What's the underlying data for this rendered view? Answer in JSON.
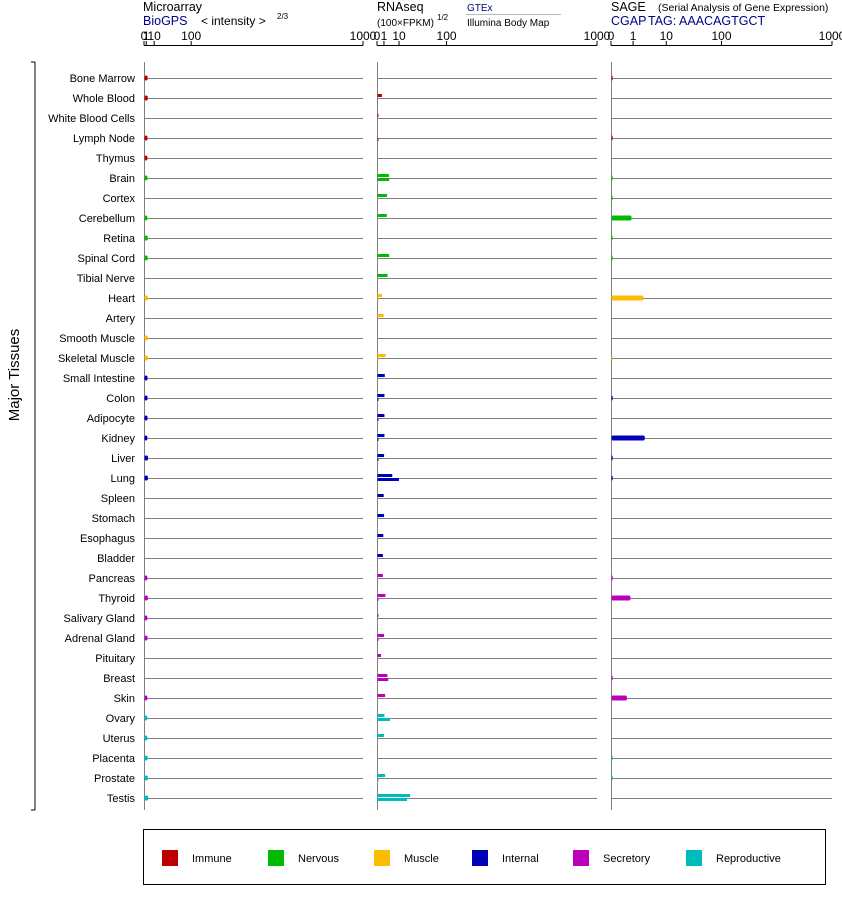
{
  "colors": {
    "Immune": "#bb0000",
    "Nervous": "#00bb00",
    "Muscle": "#ffbb00",
    "Internal": "#0000bb",
    "Secretory": "#bb00bb",
    "Reproductive": "#00bbbb",
    "header_blue": "#000088",
    "axis": "#000000",
    "gridline": "#808080"
  },
  "y_axis_label": "Major Tissues",
  "legend": [
    "Immune",
    "Nervous",
    "Muscle",
    "Internal",
    "Secretory",
    "Reproductive"
  ],
  "headers": {
    "microarray": {
      "title": "Microarray",
      "source": "BioGPS",
      "metric": "< intensity >",
      "exponent": "2/3"
    },
    "rnaseq": {
      "title": "RNAseq",
      "metric": "(100×FPKM)",
      "exponent": "1/2",
      "source1": "GTEx",
      "source2": "Illumina Body Map"
    },
    "sage": {
      "title": "SAGE",
      "subtitle": "(Serial Analysis of Gene Expression)",
      "source": "CGAP",
      "tag": "TAG: AAACAGTGCT"
    }
  },
  "chart_data": [
    {
      "type": "bar",
      "orientation": "horizontal",
      "title": "Microarray",
      "xscale": "power 2/3",
      "xticks": [
        "0",
        "1",
        "10",
        "100",
        "1000"
      ],
      "xlim": [
        0,
        1000
      ],
      "categories": [
        "Bone Marrow",
        "Whole Blood",
        "White Blood Cells",
        "Lymph Node",
        "Thymus",
        "Brain",
        "Cortex",
        "Cerebellum",
        "Retina",
        "Spinal Cord",
        "Tibial Nerve",
        "Heart",
        "Artery",
        "Smooth Muscle",
        "Skeletal Muscle",
        "Small Intestine",
        "Colon",
        "Adipocyte",
        "Kidney",
        "Liver",
        "Lung",
        "Spleen",
        "Stomach",
        "Esophagus",
        "Bladder",
        "Pancreas",
        "Thyroid",
        "Salivary Gland",
        "Adrenal Gland",
        "Pituitary",
        "Breast",
        "Skin",
        "Ovary",
        "Uterus",
        "Placenta",
        "Prostate",
        "Testis"
      ],
      "groups": [
        "Immune",
        "Immune",
        "Immune",
        "Immune",
        "Immune",
        "Nervous",
        "Nervous",
        "Nervous",
        "Nervous",
        "Nervous",
        "Nervous",
        "Muscle",
        "Muscle",
        "Muscle",
        "Muscle",
        "Internal",
        "Internal",
        "Internal",
        "Internal",
        "Internal",
        "Internal",
        "Internal",
        "Internal",
        "Internal",
        "Internal",
        "Secretory",
        "Secretory",
        "Secretory",
        "Secretory",
        "Secretory",
        "Secretory",
        "Secretory",
        "Reproductive",
        "Reproductive",
        "Reproductive",
        "Reproductive",
        "Reproductive"
      ],
      "series": [
        {
          "values": [
            1.7,
            1.8,
            null,
            1.6,
            1.5,
            1.6,
            null,
            1.5,
            1.8,
            1.7,
            null,
            1.9,
            null,
            1.8,
            1.9,
            1.6,
            1.6,
            1.6,
            1.5,
            2.0,
            1.9,
            null,
            null,
            null,
            null,
            1.5,
            1.9,
            1.5,
            1.6,
            null,
            null,
            1.5,
            1.4,
            1.5,
            1.7,
            1.8,
            2.2
          ]
        }
      ]
    },
    {
      "type": "bar",
      "orientation": "horizontal",
      "title": "RNAseq",
      "xscale": "power 1/2",
      "xticks": [
        "0",
        "1",
        "10",
        "100",
        "1000"
      ],
      "xlim": [
        0,
        1000
      ],
      "categories": [
        "Bone Marrow",
        "Whole Blood",
        "White Blood Cells",
        "Lymph Node",
        "Thymus",
        "Brain",
        "Cortex",
        "Cerebellum",
        "Retina",
        "Spinal Cord",
        "Tibial Nerve",
        "Heart",
        "Artery",
        "Smooth Muscle",
        "Skeletal Muscle",
        "Small Intestine",
        "Colon",
        "Adipocyte",
        "Kidney",
        "Liver",
        "Lung",
        "Spleen",
        "Stomach",
        "Esophagus",
        "Bladder",
        "Pancreas",
        "Thyroid",
        "Salivary Gland",
        "Adrenal Gland",
        "Pituitary",
        "Breast",
        "Skin",
        "Ovary",
        "Uterus",
        "Placenta",
        "Prostate",
        "Testis"
      ],
      "groups": [
        "Immune",
        "Immune",
        "Immune",
        "Immune",
        "Immune",
        "Nervous",
        "Nervous",
        "Nervous",
        "Nervous",
        "Nervous",
        "Nervous",
        "Muscle",
        "Muscle",
        "Muscle",
        "Muscle",
        "Internal",
        "Internal",
        "Internal",
        "Internal",
        "Internal",
        "Internal",
        "Internal",
        "Internal",
        "Internal",
        "Internal",
        "Secretory",
        "Secretory",
        "Secretory",
        "Secretory",
        "Secretory",
        "Secretory",
        "Secretory",
        "Reproductive",
        "Reproductive",
        "Reproductive",
        "Reproductive",
        "Reproductive"
      ],
      "series": [
        {
          "name": "GTEx",
          "values": [
            null,
            0.4,
            0.01,
            null,
            null,
            2.7,
            1.9,
            1.8,
            null,
            2.8,
            2.1,
            0.4,
            0.8,
            null,
            1.4,
            1.1,
            1.0,
            1.0,
            1.0,
            0.9,
            4.5,
            0.8,
            0.9,
            0.7,
            0.6,
            0.6,
            1.3,
            0.01,
            0.9,
            0.25,
            2.0,
            1.2,
            1.0,
            0.9,
            null,
            1.2,
            22
          ]
        },
        {
          "name": "Illumina Body Map",
          "values": [
            null,
            null,
            null,
            0.01,
            null,
            2.8,
            null,
            null,
            null,
            null,
            null,
            0.01,
            null,
            null,
            0.01,
            null,
            0.01,
            0.01,
            0.01,
            0.01,
            9.5,
            null,
            null,
            null,
            null,
            null,
            0.01,
            null,
            0.01,
            null,
            2.4,
            null,
            3.2,
            null,
            null,
            0.01,
            18
          ]
        }
      ]
    },
    {
      "type": "bar",
      "orientation": "horizontal",
      "title": "SAGE",
      "xscale": "log",
      "xticks": [
        "0",
        "1",
        "10",
        "100",
        "1000"
      ],
      "xlim": [
        0,
        1000
      ],
      "categories": [
        "Bone Marrow",
        "Whole Blood",
        "White Blood Cells",
        "Lymph Node",
        "Thymus",
        "Brain",
        "Cortex",
        "Cerebellum",
        "Retina",
        "Spinal Cord",
        "Tibial Nerve",
        "Heart",
        "Artery",
        "Smooth Muscle",
        "Skeletal Muscle",
        "Small Intestine",
        "Colon",
        "Adipocyte",
        "Kidney",
        "Liver",
        "Lung",
        "Spleen",
        "Stomach",
        "Esophagus",
        "Bladder",
        "Pancreas",
        "Thyroid",
        "Salivary Gland",
        "Adrenal Gland",
        "Pituitary",
        "Breast",
        "Skin",
        "Ovary",
        "Uterus",
        "Placenta",
        "Prostate",
        "Testis"
      ],
      "groups": [
        "Immune",
        "Immune",
        "Immune",
        "Immune",
        "Immune",
        "Nervous",
        "Nervous",
        "Nervous",
        "Nervous",
        "Nervous",
        "Nervous",
        "Muscle",
        "Muscle",
        "Muscle",
        "Muscle",
        "Internal",
        "Internal",
        "Internal",
        "Internal",
        "Internal",
        "Internal",
        "Internal",
        "Internal",
        "Internal",
        "Internal",
        "Secretory",
        "Secretory",
        "Secretory",
        "Secretory",
        "Secretory",
        "Secretory",
        "Secretory",
        "Reproductive",
        "Reproductive",
        "Reproductive",
        "Reproductive",
        "Reproductive"
      ],
      "series": [
        {
          "values": [
            0.05,
            null,
            null,
            0.05,
            null,
            0.05,
            0.05,
            1.3,
            0.05,
            0.05,
            null,
            2.8,
            null,
            null,
            0.03,
            null,
            0.05,
            null,
            3.0,
            0.05,
            0.05,
            null,
            null,
            null,
            null,
            0.05,
            1.2,
            null,
            null,
            null,
            0.05,
            0.9,
            null,
            null,
            0.05,
            0.05,
            null
          ]
        }
      ]
    }
  ]
}
